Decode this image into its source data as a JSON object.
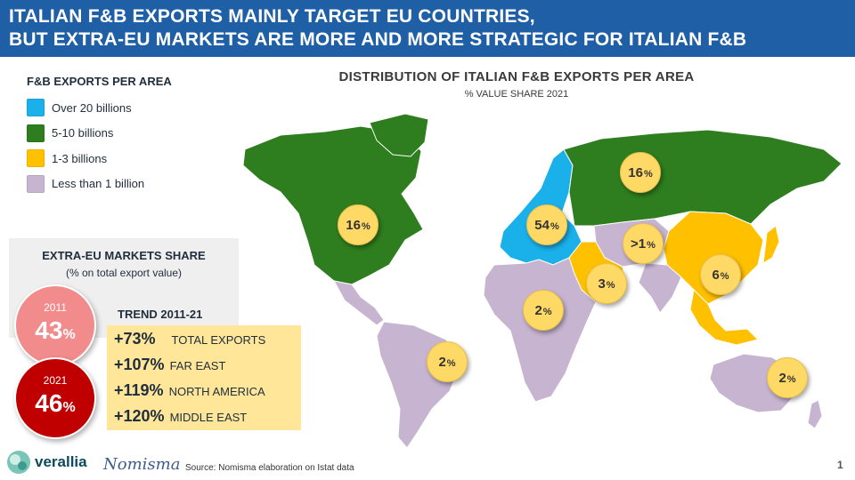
{
  "header": {
    "line1": "ITALIAN F&B EXPORTS MAINLY TARGET EU COUNTRIES,",
    "line2": "BUT EXTRA-EU MARKETS ARE MORE AND MORE STRATEGIC FOR ITALIAN F&B"
  },
  "legend": {
    "title": "F&B EXPORTS PER AREA",
    "items": [
      {
        "label": "Over 20 billions",
        "color": "#1ab0ea"
      },
      {
        "label": "5-10 billions",
        "color": "#2e7d1e"
      },
      {
        "label": "1-3 billions",
        "color": "#ffc000"
      },
      {
        "label": "Less than 1 billion",
        "color": "#c6b4d1"
      }
    ]
  },
  "map": {
    "title": "DISTRIBUTION OF ITALIAN F&B EXPORTS PER AREA",
    "subtitle": "% VALUE SHARE 2021",
    "badges": [
      {
        "region": "north-america",
        "value": "16",
        "unit": "%"
      },
      {
        "region": "eu",
        "value": "54",
        "unit": "%"
      },
      {
        "region": "russia-europe-extra",
        "value": "16",
        "unit": "%"
      },
      {
        "region": "central-asia",
        "value": ">1",
        "unit": "%"
      },
      {
        "region": "middle-east",
        "value": "3",
        "unit": "%"
      },
      {
        "region": "east-asia",
        "value": "6",
        "unit": "%"
      },
      {
        "region": "africa",
        "value": "2",
        "unit": "%"
      },
      {
        "region": "south-america",
        "value": "2",
        "unit": "%"
      },
      {
        "region": "oceania",
        "value": "2",
        "unit": "%"
      }
    ]
  },
  "extra_eu": {
    "title": "EXTRA-EU MARKETS SHARE",
    "subtitle": "(% on total export value)",
    "y2011": {
      "year": "2011",
      "value": "43",
      "unit": "%"
    },
    "y2021": {
      "year": "2021",
      "value": "46",
      "unit": "%"
    }
  },
  "trend": {
    "title": "TREND 2011-21",
    "rows": [
      {
        "value": "+73%",
        "label": "TOTAL EXPORTS"
      },
      {
        "value": "+107%",
        "label": "FAR EAST"
      },
      {
        "value": "+119%",
        "label": "NORTH AMERICA"
      },
      {
        "value": "+120%",
        "label": "MIDDLE EAST"
      }
    ]
  },
  "footer": {
    "logo1": "verallia",
    "logo2": "Nomisma",
    "source": "Source: Nomisma elaboration on Istat data",
    "page": "1"
  },
  "colors": {
    "header_bg": "#1f5fa6",
    "green": "#2e7d1e",
    "blue": "#1ab0ea",
    "yellow": "#ffc000",
    "lilac": "#c6b4d1",
    "badge": "#ffd966"
  }
}
